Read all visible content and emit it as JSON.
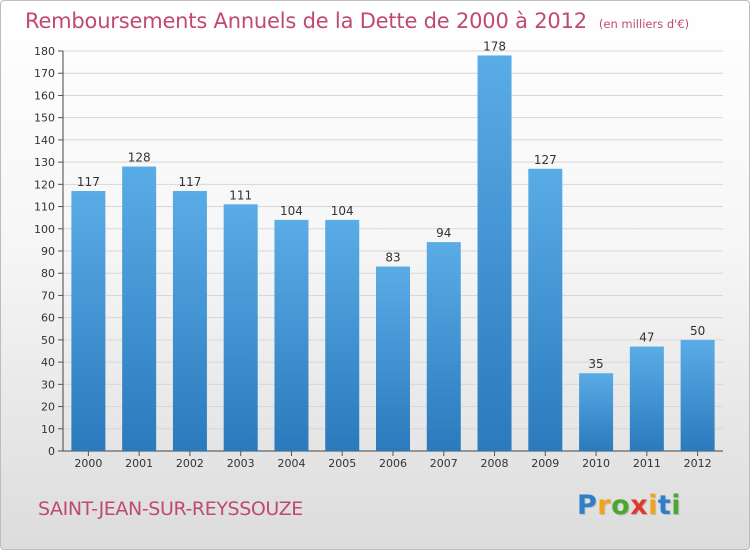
{
  "header": {
    "title": "Remboursements Annuels de la Dette de 2000 à 2012",
    "unit": "(en milliers d'€)"
  },
  "footer": {
    "city": "SAINT-JEAN-SUR-REYSSOUZE",
    "logo_text": "Proxiti",
    "logo_letters": [
      {
        "ch": "P",
        "color": "#2f7fc8"
      },
      {
        "ch": "r",
        "color": "#f2a31b"
      },
      {
        "ch": "o",
        "color": "#4aa832"
      },
      {
        "ch": "x",
        "color": "#e03a2f"
      },
      {
        "ch": "i",
        "color": "#f2a31b"
      },
      {
        "ch": "t",
        "color": "#2f7fc8"
      },
      {
        "ch": "i",
        "color": "#4aa832"
      }
    ]
  },
  "colors": {
    "bar_top": "#5aace6",
    "bar_bottom": "#2a7abd",
    "title": "#c04a6e",
    "grid": "#d7d7d7"
  },
  "chart_data": {
    "type": "bar",
    "categories": [
      "2000",
      "2001",
      "2002",
      "2003",
      "2004",
      "2005",
      "2006",
      "2007",
      "2008",
      "2009",
      "2010",
      "2011",
      "2012"
    ],
    "values": [
      117,
      128,
      117,
      111,
      104,
      104,
      83,
      94,
      178,
      127,
      35,
      47,
      50
    ],
    "ylim": [
      0,
      180
    ],
    "yticks": [
      0,
      10,
      20,
      30,
      40,
      50,
      60,
      70,
      80,
      90,
      100,
      110,
      120,
      130,
      140,
      150,
      160,
      170,
      180
    ],
    "grid": true,
    "data_labels": true,
    "legend": "none"
  }
}
